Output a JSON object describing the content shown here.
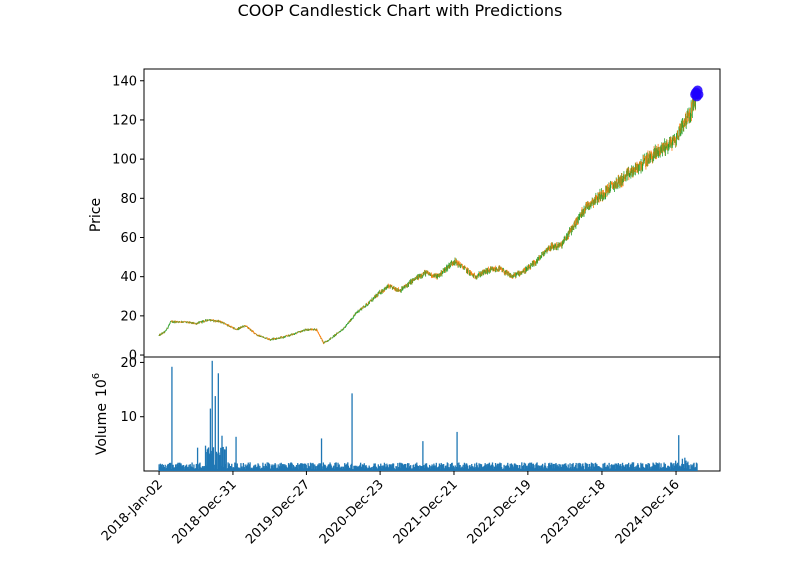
{
  "chart_data": {
    "type": "candlestick",
    "title": "COOP Candlestick Chart with Predictions",
    "price_panel": {
      "ylabel": "Price",
      "ylim": [
        -1,
        146
      ],
      "yticks": [
        0,
        20,
        40,
        60,
        80,
        100,
        120,
        140
      ],
      "close_path": [
        [
          "2018-01-02",
          10
        ],
        [
          "2018-02-01",
          12
        ],
        [
          "2018-03-01",
          17
        ],
        [
          "2018-05-01",
          17
        ],
        [
          "2018-07-01",
          16
        ],
        [
          "2018-09-01",
          18
        ],
        [
          "2018-11-01",
          17
        ],
        [
          "2019-01-15",
          13
        ],
        [
          "2019-03-01",
          15
        ],
        [
          "2019-05-01",
          10
        ],
        [
          "2019-07-01",
          8
        ],
        [
          "2019-09-01",
          9
        ],
        [
          "2019-11-01",
          11
        ],
        [
          "2019-12-27",
          13
        ],
        [
          "2020-02-15",
          13
        ],
        [
          "2020-03-20",
          6
        ],
        [
          "2020-05-01",
          9
        ],
        [
          "2020-07-01",
          14
        ],
        [
          "2020-09-01",
          22
        ],
        [
          "2020-11-01",
          27
        ],
        [
          "2020-12-23",
          32
        ],
        [
          "2021-02-01",
          35
        ],
        [
          "2021-04-01",
          33
        ],
        [
          "2021-06-01",
          38
        ],
        [
          "2021-08-01",
          42
        ],
        [
          "2021-10-01",
          40
        ],
        [
          "2021-12-21",
          48
        ],
        [
          "2022-02-01",
          45
        ],
        [
          "2022-04-01",
          40
        ],
        [
          "2022-06-01",
          43
        ],
        [
          "2022-08-01",
          44
        ],
        [
          "2022-10-01",
          40
        ],
        [
          "2022-12-19",
          44
        ],
        [
          "2023-02-01",
          48
        ],
        [
          "2023-04-01",
          55
        ],
        [
          "2023-06-01",
          56
        ],
        [
          "2023-08-01",
          66
        ],
        [
          "2023-10-01",
          76
        ],
        [
          "2023-12-18",
          82
        ],
        [
          "2024-02-01",
          86
        ],
        [
          "2024-04-01",
          90
        ],
        [
          "2024-06-01",
          95
        ],
        [
          "2024-08-01",
          100
        ],
        [
          "2024-10-01",
          105
        ],
        [
          "2024-12-16",
          110
        ],
        [
          "2025-01-15",
          118
        ],
        [
          "2025-02-20",
          122
        ],
        [
          "2025-03-10",
          128
        ],
        [
          "2025-03-31",
          132
        ]
      ],
      "predictions": [
        [
          "2025-03-20",
          133
        ],
        [
          "2025-03-24",
          134
        ],
        [
          "2025-03-28",
          132
        ],
        [
          "2025-04-01",
          135
        ],
        [
          "2025-04-05",
          133
        ]
      ],
      "colors": {
        "up": "#2ca02c",
        "down": "#ff7f0e",
        "prediction": "#1f00ff"
      }
    },
    "volume_panel": {
      "ylabel": "Volume",
      "scale_label": "10",
      "scale_exponent": "6",
      "ylim": [
        0,
        21
      ],
      "yticks": [
        10,
        20
      ],
      "bar_color": "#1f77b4",
      "spikes": [
        [
          "2018-03-05",
          19.2
        ],
        [
          "2018-07-10",
          4.3
        ],
        [
          "2018-08-20",
          3.5
        ],
        [
          "2018-09-10",
          11.5
        ],
        [
          "2018-09-18",
          20.3
        ],
        [
          "2018-10-05",
          13.8
        ],
        [
          "2018-10-20",
          18.0
        ],
        [
          "2018-11-05",
          6.5
        ],
        [
          "2019-01-15",
          6.3
        ],
        [
          "2020-03-10",
          6.0
        ],
        [
          "2020-08-06",
          14.3
        ],
        [
          "2021-07-20",
          5.5
        ],
        [
          "2022-01-05",
          7.2
        ],
        [
          "2024-12-28",
          6.6
        ]
      ]
    },
    "xticks": [
      "2018-Jan-02",
      "2018-Dec-31",
      "2019-Dec-27",
      "2020-Dec-23",
      "2021-Dec-21",
      "2022-Dec-19",
      "2023-Dec-18",
      "2024-Dec-16"
    ],
    "xtick_dates": [
      "2018-01-02",
      "2018-12-31",
      "2019-12-27",
      "2020-12-23",
      "2021-12-21",
      "2022-12-19",
      "2023-12-18",
      "2024-12-16"
    ],
    "date_range": [
      "2017-10-20",
      "2025-07-20"
    ]
  }
}
